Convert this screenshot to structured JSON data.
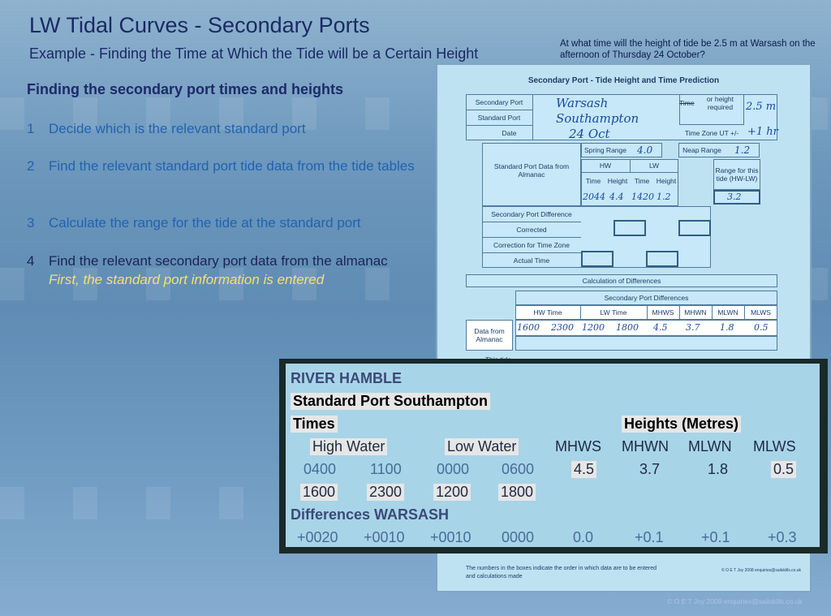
{
  "title": "LW Tidal Curves - Secondary Ports",
  "subtitle": "Example - Finding the Time at Which the Tide will be a Certain Height",
  "question": "At what time will the height of tide be 2.5 m at Warsash on the afternoon of Thursday 24 October?",
  "section_heading": "Finding the secondary port times and heights",
  "steps": [
    {
      "num": "1",
      "text": "Decide which is the relevant standard port"
    },
    {
      "num": "2",
      "text": "Find the relevant standard port tide data from the tide tables"
    },
    {
      "num": "3",
      "text": "Calculate the range for the tide at the standard port"
    },
    {
      "num": "4",
      "text": "Find the relevant secondary port data from the almanac"
    }
  ],
  "step_note": "First, the standard port information is entered",
  "form": {
    "title": "Secondary Port - Tide Height and Time Prediction",
    "secondary_port_label": "Secondary Port",
    "secondary_port_value": "Warsash",
    "standard_port_label": "Standard Port",
    "standard_port_value": "Southampton",
    "date_label": "Date",
    "date_value": "24 Oct",
    "time_or_height_label": "or height required",
    "time_strike": "Time",
    "height_required_value": "2.5 m",
    "timezone_label": "Time Zone UT +/-",
    "timezone_value": "+1 hr",
    "spring_range_label": "Spring Range",
    "spring_range_value": "4.0",
    "neap_range_label": "Neap Range",
    "neap_range_value": "1.2",
    "std_port_data_label": "Standard Port Data from Almanac",
    "hw_label": "HW",
    "lw_label": "LW",
    "range_tide_label": "Range for this tide (HW-LW)",
    "time_label": "Time",
    "height_label": "Height",
    "hw_time_value": "2044",
    "hw_height_value": "4.4",
    "lw_time_value": "1420",
    "lw_height_value": "1.2",
    "range_value": "3.2",
    "sec_port_diff_label": "Secondary Port Difference",
    "corrected_label": "Corrected",
    "correction_tz_label": "Correction for Time Zone",
    "actual_time_label": "Actual Time",
    "calc_diff_label": "Calculation of Differences",
    "sec_port_diffs_label": "Secondary Port Differences",
    "diff_headers": [
      "HW Time",
      "LW Time",
      "MHWS",
      "MHWN",
      "MLWN",
      "MLWS"
    ],
    "data_from_almanac_label": "Data from Almanac",
    "diff_values": [
      "1600",
      "2300",
      "1200",
      "1800",
      "4.5",
      "3.7",
      "1.8",
      "0.5"
    ],
    "this_tide_label": "This tide",
    "footer_note": "The numbers in the boxes indicate the order in which data are to be entered and calculations made",
    "footer_copy": "© O E T Joy 2008 enquiries@sailskills.co.uk"
  },
  "almanac": {
    "river": "RIVER HAMBLE",
    "standard_port": "Standard Port Southampton",
    "times_label": "Times",
    "heights_label": "Heights (Metres)",
    "high_water": "High Water",
    "low_water": "Low Water",
    "mhws": "MHWS",
    "mhwn": "MHWN",
    "mlwn": "MLWN",
    "mlws": "MLWS",
    "row1": [
      "0400",
      "1100",
      "0000",
      "0600",
      "4.5",
      "3.7",
      "1.8",
      "0.5"
    ],
    "row2": [
      "1600",
      "2300",
      "1200",
      "1800"
    ],
    "differences_label": "Differences WARSASH",
    "diff_row": [
      "+0020",
      "+0010",
      "+0010",
      "0000",
      "0.0",
      "+0.1",
      "+0.1",
      "+0.3"
    ]
  },
  "copyright": "© O E T Joy 2008 enquiries@sailskills.co.uk"
}
